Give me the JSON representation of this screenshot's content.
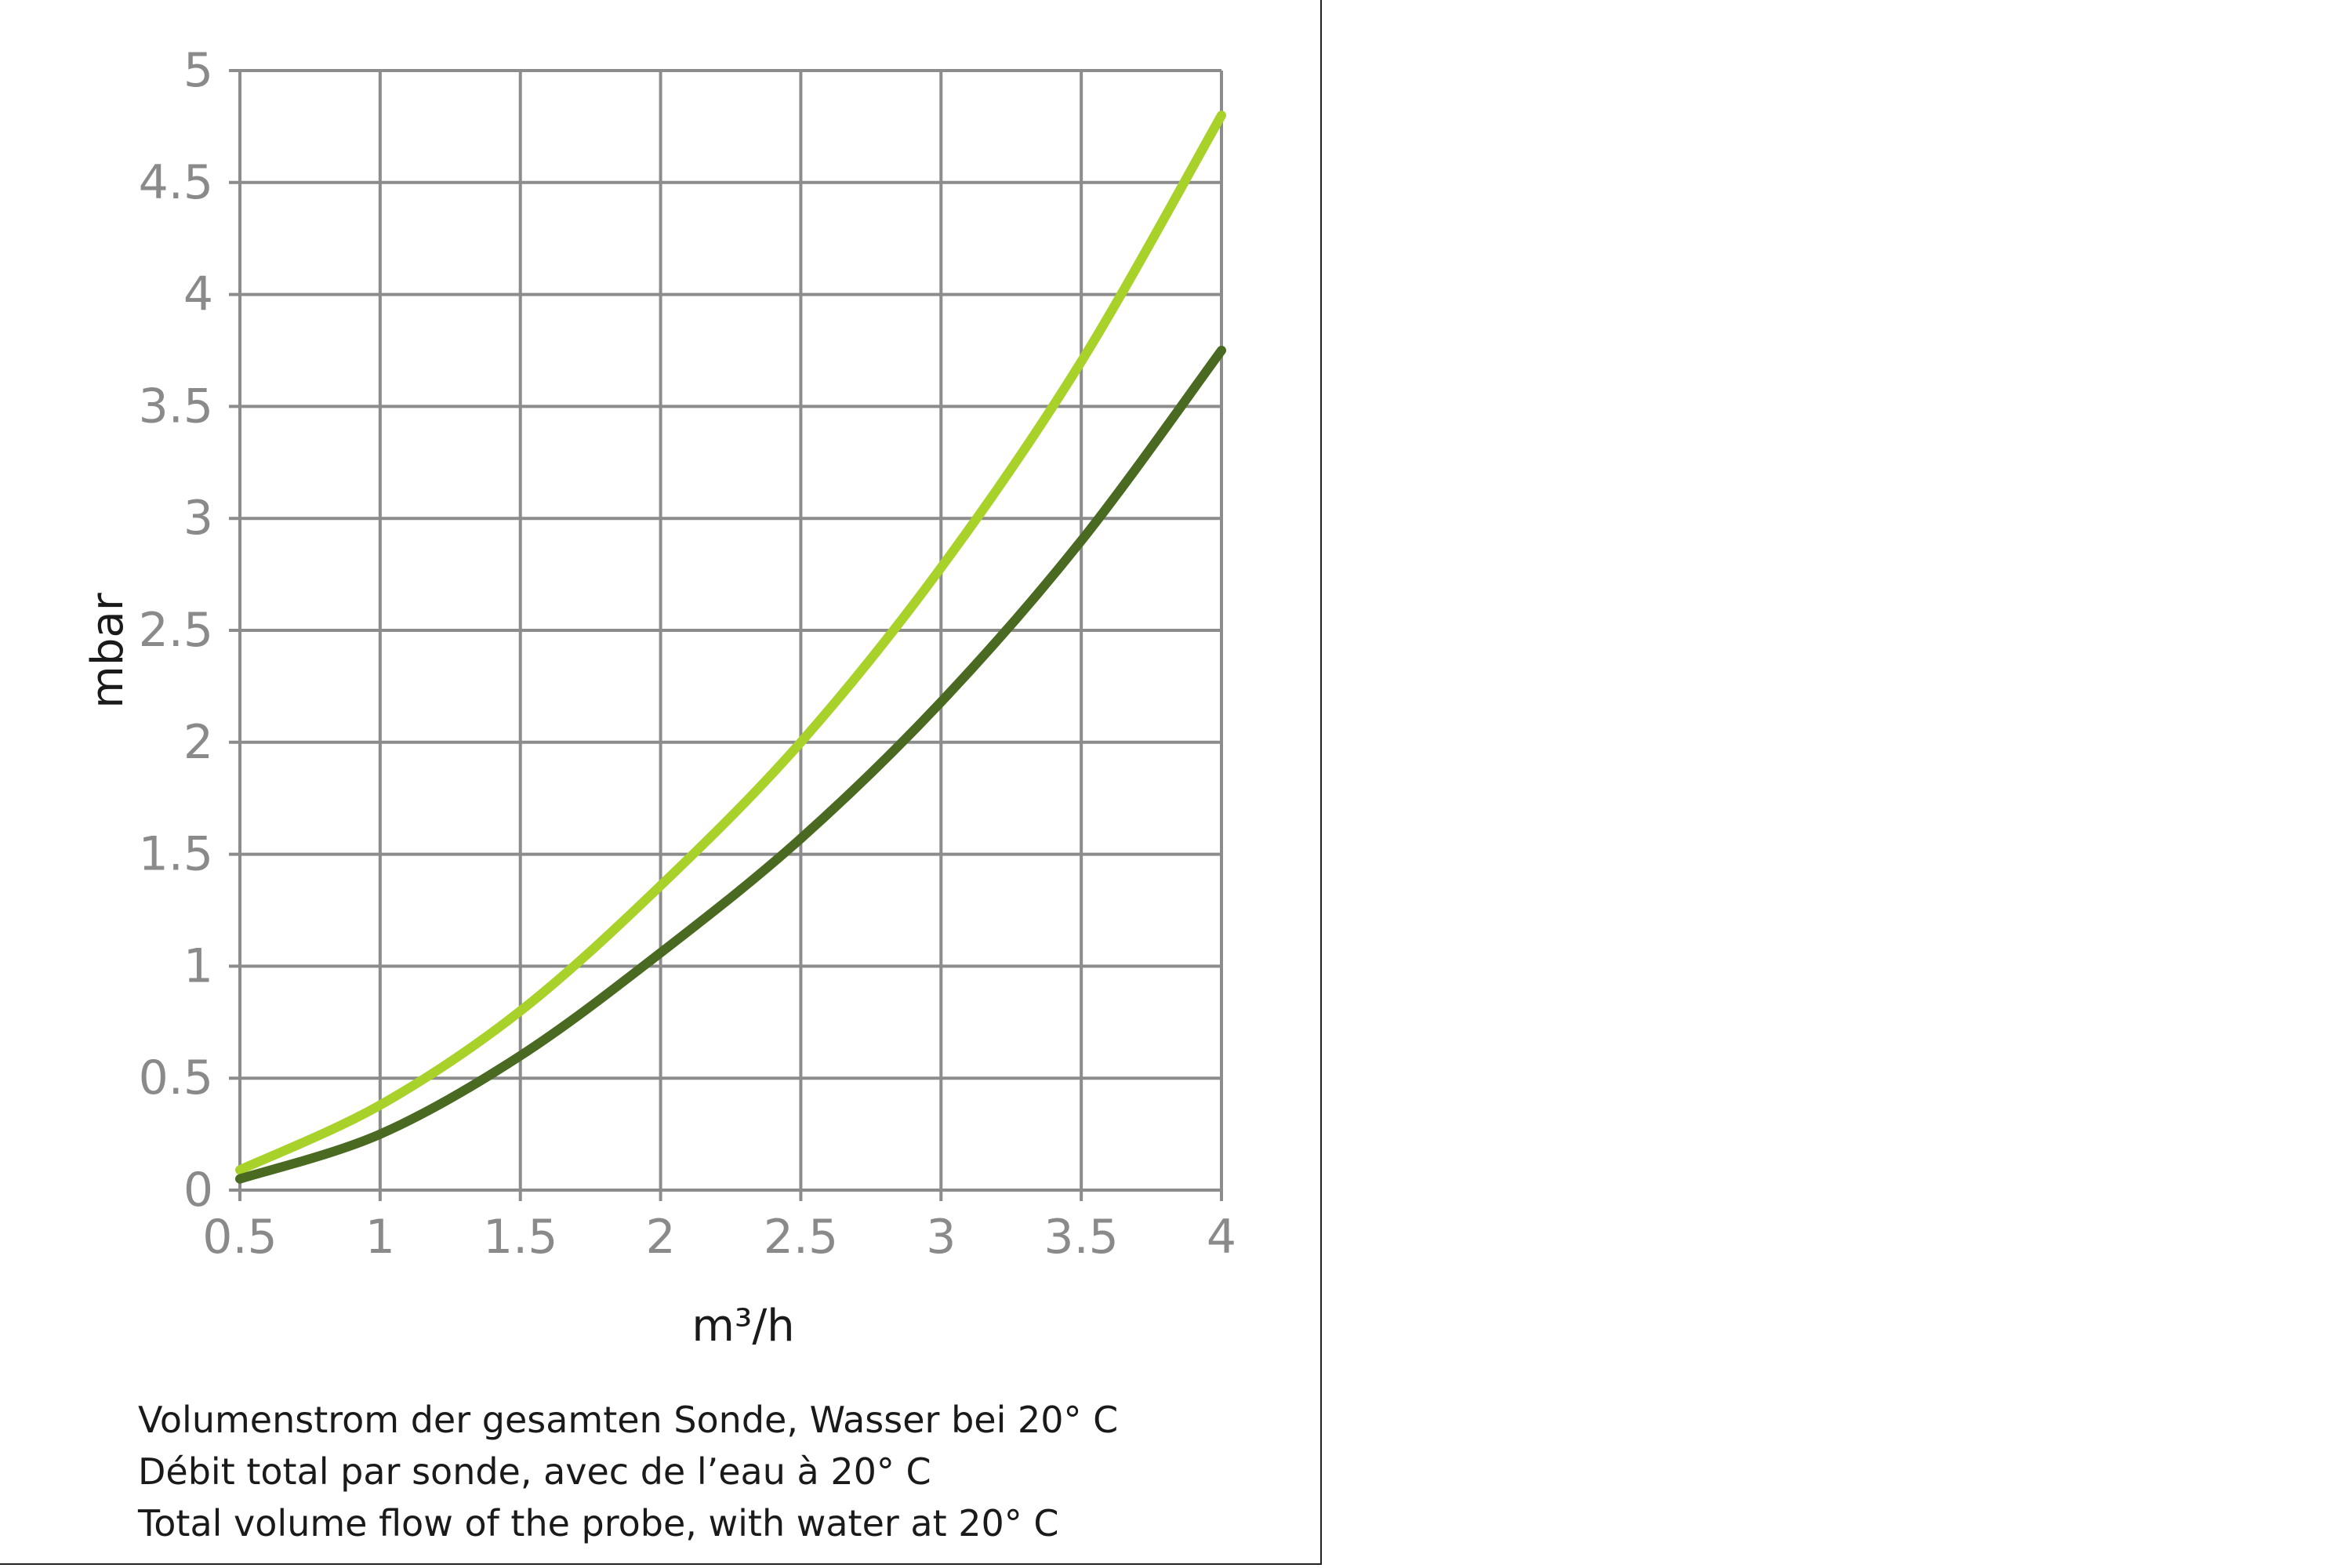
{
  "chart_data": {
    "type": "line",
    "xlabel": "m³/h",
    "ylabel": "mbar",
    "xlim": [
      0.5,
      4
    ],
    "ylim": [
      0,
      5
    ],
    "xticks": [
      "0.5",
      "1",
      "1.5",
      "2",
      "2.5",
      "3",
      "3.5",
      "4"
    ],
    "yticks": [
      "0",
      "0.5",
      "1",
      "1.5",
      "2",
      "2.5",
      "3",
      "3.5",
      "4",
      "4.5",
      "5"
    ],
    "grid": true,
    "series": [
      {
        "color": "#a8d22a",
        "x": [
          0.5,
          1.0,
          1.5,
          2.0,
          2.5,
          3.0,
          3.5,
          4.0
        ],
        "y": [
          0.09,
          0.38,
          0.8,
          1.36,
          2.0,
          2.78,
          3.7,
          4.8
        ]
      },
      {
        "color": "#4a6a22",
        "x": [
          0.5,
          1.0,
          1.5,
          2.0,
          2.5,
          3.0,
          3.5,
          4.0
        ],
        "y": [
          0.05,
          0.25,
          0.6,
          1.06,
          1.57,
          2.18,
          2.9,
          3.75
        ]
      }
    ]
  },
  "caption": {
    "lines": [
      "Volumenstrom der gesamten Sonde, Wasser bei 20° C",
      "Débit total par sonde, avec de l’eau à 20° C",
      "Total volume flow of the probe, with water at 20° C"
    ]
  }
}
